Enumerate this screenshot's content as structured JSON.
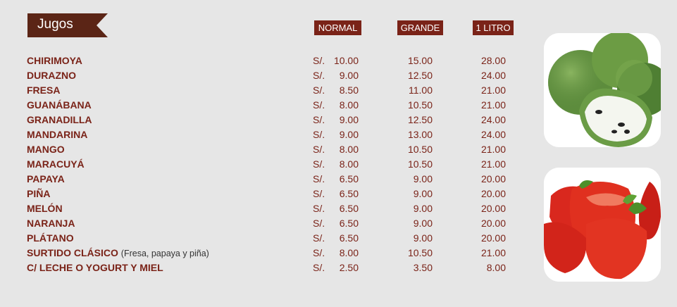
{
  "header": {
    "title": "Jugos",
    "columns": {
      "normal": "NORMAL",
      "grande": "GRANDE",
      "litro": "1 LITRO"
    }
  },
  "currency": "S/.",
  "items": [
    {
      "name": "CHIRIMOYA",
      "note": "",
      "normal": "10.00",
      "grande": "15.00",
      "litro": "28.00"
    },
    {
      "name": "DURAZNO",
      "note": "",
      "normal": "9.00",
      "grande": "12.50",
      "litro": "24.00"
    },
    {
      "name": "FRESA",
      "note": "",
      "normal": "8.50",
      "grande": "11.00",
      "litro": "21.00"
    },
    {
      "name": "GUANÁBANA",
      "note": "",
      "normal": "8.00",
      "grande": "10.50",
      "litro": "21.00"
    },
    {
      "name": "GRANADILLA",
      "note": "",
      "normal": "9.00",
      "grande": "12.50",
      "litro": "24.00"
    },
    {
      "name": "MANDARINA",
      "note": "",
      "normal": "9.00",
      "grande": "13.00",
      "litro": "24.00"
    },
    {
      "name": "MANGO",
      "note": "",
      "normal": "8.00",
      "grande": "10.50",
      "litro": "21.00"
    },
    {
      "name": "MARACUYÁ",
      "note": "",
      "normal": "8.00",
      "grande": "10.50",
      "litro": "21.00"
    },
    {
      "name": "PAPAYA",
      "note": "",
      "normal": "6.50",
      "grande": "9.00",
      "litro": "20.00"
    },
    {
      "name": "PIÑA",
      "note": "",
      "normal": "6.50",
      "grande": "9.00",
      "litro": "20.00"
    },
    {
      "name": "MELÓN",
      "note": "",
      "normal": "6.50",
      "grande": "9.00",
      "litro": "20.00"
    },
    {
      "name": "NARANJA",
      "note": "",
      "normal": "6.50",
      "grande": "9.00",
      "litro": "20.00"
    },
    {
      "name": "PLÁTANO",
      "note": "",
      "normal": "6.50",
      "grande": "9.00",
      "litro": "20.00"
    },
    {
      "name": "SURTIDO CLÁSICO",
      "note": "(Fresa, papaya y piña)",
      "normal": "8.00",
      "grande": "10.50",
      "litro": "21.00"
    },
    {
      "name": "C/ LECHE O YOGURT Y MIEL",
      "note": "",
      "normal": "2.50",
      "grande": "3.50",
      "litro": "8.00"
    }
  ],
  "colors": {
    "background": "#e6e6e6",
    "accent": "#7a2318",
    "banner": "#5b2516"
  },
  "images": [
    "chirimoya-photo",
    "strawberry-photo"
  ]
}
